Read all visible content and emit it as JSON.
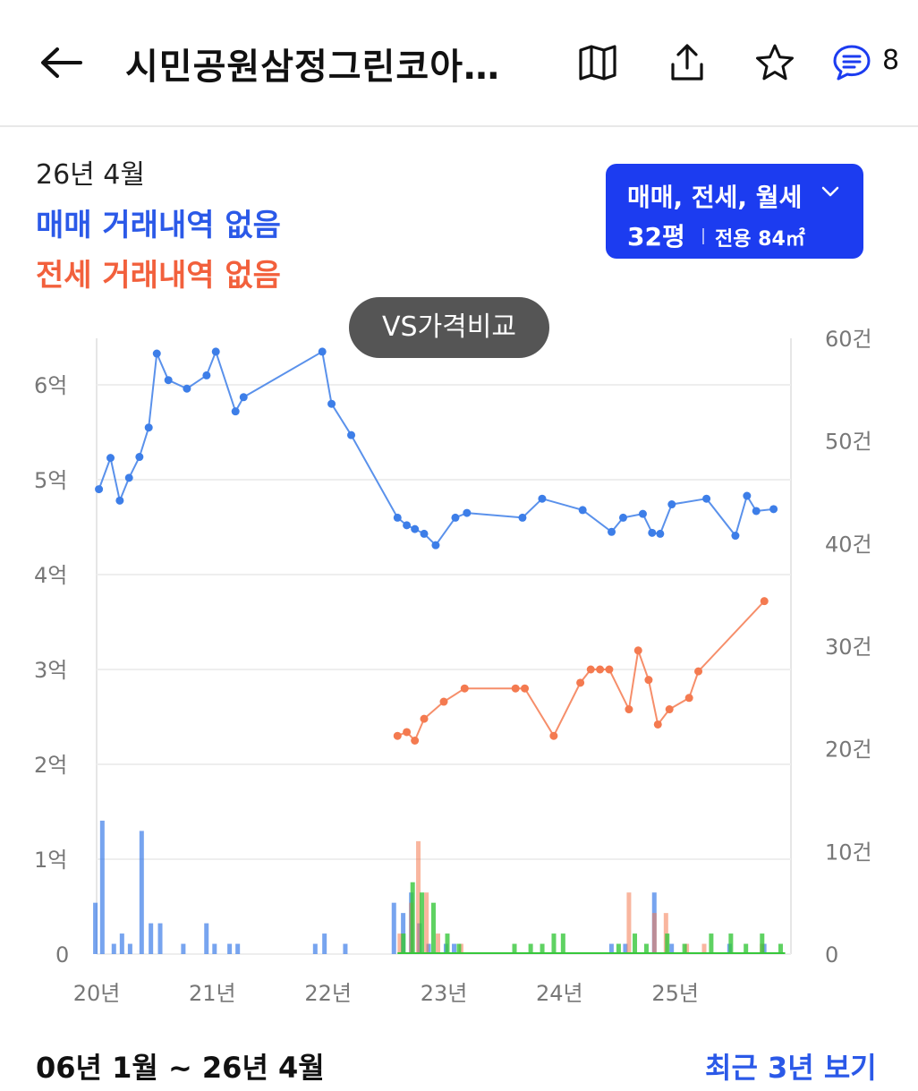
{
  "header": {
    "title": "시민공원삼정그린코아…",
    "icons": [
      "back-arrow-icon",
      "map-book-icon",
      "share-icon",
      "star-icon",
      "comment-icon"
    ],
    "comment_count": "8"
  },
  "summary": {
    "date": "26년 4월",
    "sale_status": "매매 거래내역 없음",
    "jeonse_status": "전세 거래내역 없음"
  },
  "filter": {
    "types": "매매, 전세, 월세",
    "size": "32평",
    "area": "전용 84㎡"
  },
  "vs_button": "VS가격비교",
  "footer": {
    "range": "06년 1월 ~ 26년 4월",
    "recent_link": "최근 3년 보기"
  },
  "colors": {
    "sale": "#3d7ee8",
    "jeonse": "#f47a50",
    "rent": "#37c73b",
    "accent": "#1c3cf0"
  },
  "chart_data": {
    "type": "line",
    "x_labels": [
      "20년",
      "21년",
      "22년",
      "23년",
      "24년",
      "25년"
    ],
    "y_left_labels": [
      "0",
      "1억",
      "2억",
      "3억",
      "4억",
      "5억",
      "6억"
    ],
    "y_right_labels": [
      "0",
      "10건",
      "20건",
      "30건",
      "40건",
      "50건",
      "60건"
    ],
    "ylim_left": [
      0,
      6.5
    ],
    "ylim_right": [
      0,
      60
    ],
    "x_range": [
      2020.0,
      2026.0
    ],
    "series": [
      {
        "name": "매매",
        "color": "#3d7ee8",
        "points": [
          [
            2020.02,
            4.9
          ],
          [
            2020.12,
            5.23
          ],
          [
            2020.2,
            4.78
          ],
          [
            2020.28,
            5.02
          ],
          [
            2020.37,
            5.24
          ],
          [
            2020.45,
            5.55
          ],
          [
            2020.52,
            6.33
          ],
          [
            2020.62,
            6.05
          ],
          [
            2020.78,
            5.96
          ],
          [
            2020.95,
            6.1
          ],
          [
            2021.03,
            6.35
          ],
          [
            2021.2,
            5.72
          ],
          [
            2021.27,
            5.87
          ],
          [
            2021.95,
            6.35
          ],
          [
            2022.03,
            5.8
          ],
          [
            2022.2,
            5.47
          ],
          [
            2022.6,
            4.6
          ],
          [
            2022.68,
            4.52
          ],
          [
            2022.75,
            4.48
          ],
          [
            2022.83,
            4.43
          ],
          [
            2022.93,
            4.31
          ],
          [
            2023.1,
            4.6
          ],
          [
            2023.2,
            4.65
          ],
          [
            2023.68,
            4.6
          ],
          [
            2023.85,
            4.8
          ],
          [
            2024.2,
            4.68
          ],
          [
            2024.45,
            4.45
          ],
          [
            2024.55,
            4.6
          ],
          [
            2024.72,
            4.64
          ],
          [
            2024.8,
            4.44
          ],
          [
            2024.87,
            4.43
          ],
          [
            2024.97,
            4.74
          ],
          [
            2025.27,
            4.8
          ],
          [
            2025.52,
            4.41
          ],
          [
            2025.62,
            4.83
          ],
          [
            2025.7,
            4.67
          ],
          [
            2025.85,
            4.69
          ]
        ]
      },
      {
        "name": "전세",
        "color": "#f47a50",
        "points": [
          [
            2022.6,
            2.3
          ],
          [
            2022.68,
            2.34
          ],
          [
            2022.75,
            2.25
          ],
          [
            2022.83,
            2.48
          ],
          [
            2023.0,
            2.66
          ],
          [
            2023.18,
            2.8
          ],
          [
            2023.62,
            2.8
          ],
          [
            2023.7,
            2.8
          ],
          [
            2023.95,
            2.3
          ],
          [
            2024.18,
            2.86
          ],
          [
            2024.27,
            3.0
          ],
          [
            2024.35,
            3.0
          ],
          [
            2024.43,
            3.0
          ],
          [
            2024.6,
            2.58
          ],
          [
            2024.68,
            3.2
          ],
          [
            2024.77,
            2.89
          ],
          [
            2024.85,
            2.42
          ],
          [
            2024.95,
            2.58
          ],
          [
            2025.12,
            2.7
          ],
          [
            2025.2,
            2.98
          ],
          [
            2025.77,
            3.72
          ]
        ]
      }
    ],
    "volume": {
      "sale": [
        [
          2020.02,
          5
        ],
        [
          2020.08,
          13
        ],
        [
          2020.18,
          1
        ],
        [
          2020.25,
          2
        ],
        [
          2020.32,
          1
        ],
        [
          2020.42,
          12
        ],
        [
          2020.5,
          3
        ],
        [
          2020.58,
          3
        ],
        [
          2020.78,
          1
        ],
        [
          2020.98,
          3
        ],
        [
          2021.05,
          1
        ],
        [
          2021.18,
          1
        ],
        [
          2021.25,
          1
        ],
        [
          2021.92,
          1
        ],
        [
          2022.0,
          2
        ],
        [
          2022.18,
          1
        ],
        [
          2022.6,
          5
        ],
        [
          2022.68,
          4
        ],
        [
          2022.75,
          6
        ],
        [
          2022.82,
          3
        ],
        [
          2022.9,
          1
        ],
        [
          2023.05,
          1
        ],
        [
          2023.12,
          1
        ],
        [
          2024.48,
          1
        ],
        [
          2024.6,
          1
        ],
        [
          2024.85,
          6
        ],
        [
          2025.0,
          1
        ],
        [
          2025.5,
          1
        ],
        [
          2025.8,
          1
        ]
      ],
      "jeonse": [
        [
          2022.62,
          2
        ],
        [
          2022.72,
          5
        ],
        [
          2022.78,
          11
        ],
        [
          2022.85,
          6
        ],
        [
          2022.95,
          2
        ],
        [
          2023.15,
          1
        ],
        [
          2024.6,
          6
        ],
        [
          2024.82,
          4
        ],
        [
          2024.92,
          4
        ],
        [
          2025.1,
          1
        ],
        [
          2025.25,
          1
        ],
        [
          2025.75,
          1
        ]
      ],
      "rent": [
        [
          2022.62,
          2
        ],
        [
          2022.7,
          7
        ],
        [
          2022.78,
          6
        ],
        [
          2022.88,
          5
        ],
        [
          2023.0,
          2
        ],
        [
          2023.1,
          1
        ],
        [
          2023.58,
          1
        ],
        [
          2023.72,
          1
        ],
        [
          2023.82,
          1
        ],
        [
          2023.92,
          2
        ],
        [
          2024.0,
          2
        ],
        [
          2024.48,
          1
        ],
        [
          2024.62,
          2
        ],
        [
          2024.72,
          1
        ],
        [
          2024.9,
          2
        ],
        [
          2025.05,
          1
        ],
        [
          2025.28,
          2
        ],
        [
          2025.45,
          2
        ],
        [
          2025.58,
          1
        ],
        [
          2025.72,
          2
        ],
        [
          2025.88,
          1
        ]
      ]
    }
  }
}
